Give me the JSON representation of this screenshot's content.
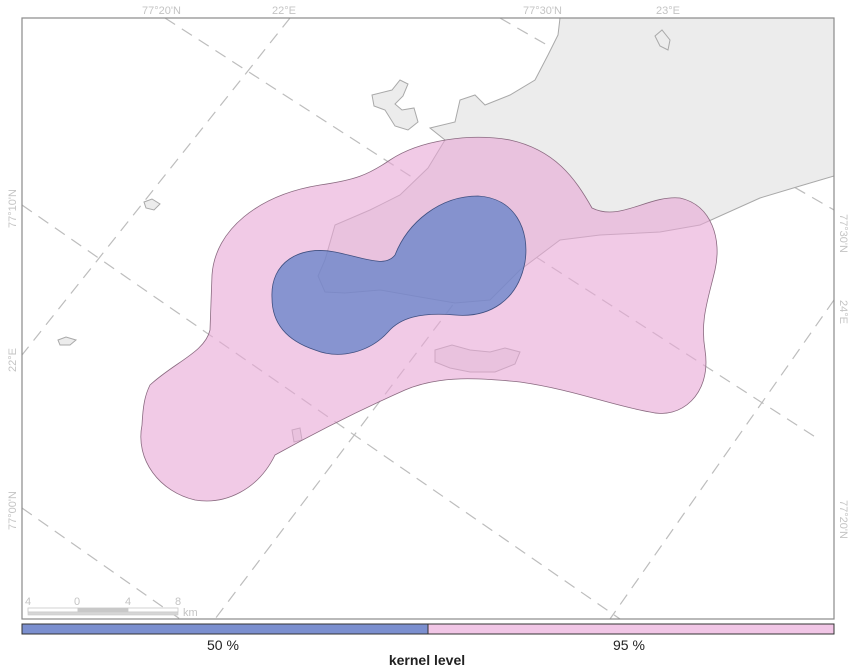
{
  "map": {
    "graticule_labels": {
      "top": [
        "77°20'N",
        "22°E",
        "77°30'N",
        "23°E"
      ],
      "left": [
        "77°10'N",
        "22°E",
        "77°00'N"
      ],
      "right": [
        "77°30'N",
        "24°E",
        "77°20'N"
      ]
    },
    "scale_bar": {
      "ticks": [
        "4",
        "0",
        "4",
        "8"
      ],
      "unit": "km"
    },
    "kernel_colors": {
      "50": "#7b8fcf",
      "95": "#f1c6e6"
    }
  },
  "legend": {
    "title": "kernel level",
    "items": [
      {
        "label": "50 %",
        "color": "#7b8fcf"
      },
      {
        "label": "95 %",
        "color": "#f1c6e6"
      }
    ]
  }
}
